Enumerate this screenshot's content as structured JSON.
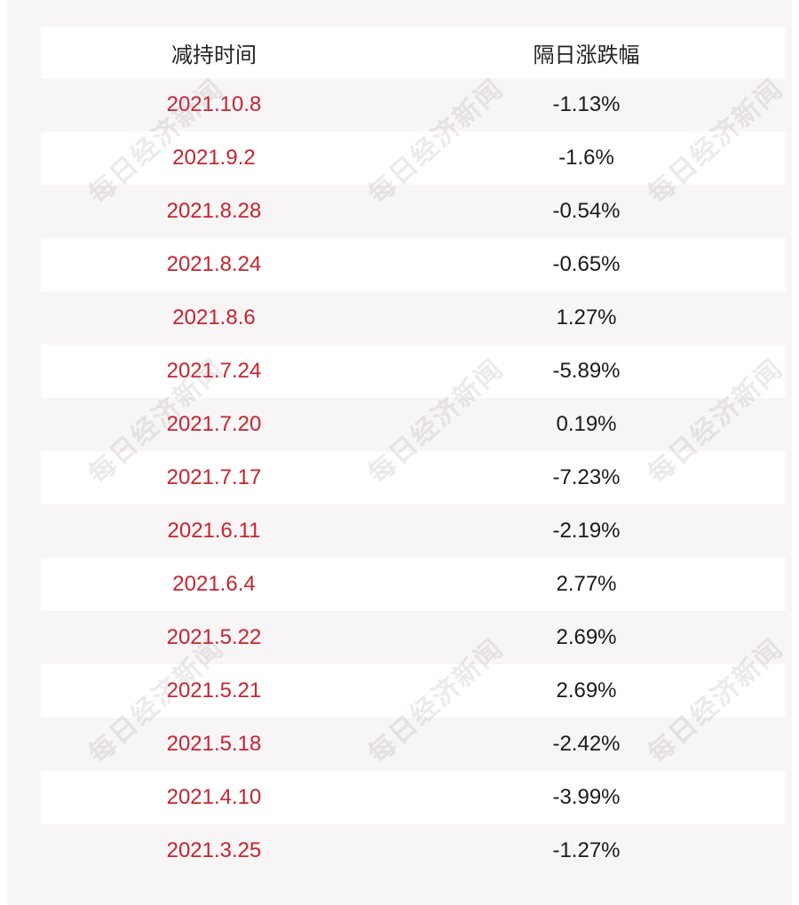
{
  "table": {
    "headers": [
      "减持时间",
      "隔日涨跌幅"
    ],
    "rows": [
      {
        "date": "2021.10.8",
        "change": "-1.13%"
      },
      {
        "date": "2021.9.2",
        "change": "-1.6%"
      },
      {
        "date": "2021.8.28",
        "change": "-0.54%"
      },
      {
        "date": "2021.8.24",
        "change": "-0.65%"
      },
      {
        "date": "2021.8.6",
        "change": "1.27%"
      },
      {
        "date": "2021.7.24",
        "change": "-5.89%"
      },
      {
        "date": "2021.7.20",
        "change": "0.19%"
      },
      {
        "date": "2021.7.17",
        "change": "-7.23%"
      },
      {
        "date": "2021.6.11",
        "change": "-2.19%"
      },
      {
        "date": "2021.6.4",
        "change": "2.77%"
      },
      {
        "date": "2021.5.22",
        "change": "2.69%"
      },
      {
        "date": "2021.5.21",
        "change": "2.69%"
      },
      {
        "date": "2021.5.18",
        "change": "-2.42%"
      },
      {
        "date": "2021.4.10",
        "change": "-3.99%"
      },
      {
        "date": "2021.3.25",
        "change": "-1.27%"
      }
    ]
  },
  "watermark": {
    "text": "每日经济新闻"
  },
  "colors": {
    "date_text": "#c9242e",
    "stripe_bg": "#f8f5f6"
  }
}
